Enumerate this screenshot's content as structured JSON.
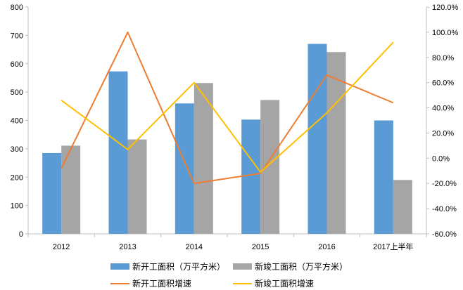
{
  "chart_data": {
    "type": "bar",
    "categories": [
      "2012",
      "2013",
      "2014",
      "2015",
      "2016",
      "2017上半年"
    ],
    "y_left": {
      "ylim": [
        0,
        800
      ],
      "ticks": [
        "0",
        "100",
        "200",
        "300",
        "400",
        "500",
        "600",
        "700",
        "800"
      ]
    },
    "y_right": {
      "ylim": [
        -60,
        120
      ],
      "ticks": [
        "-60.0%",
        "-40.0%",
        "-20.0%",
        "0.0%",
        "20.0%",
        "40.0%",
        "60.0%",
        "80.0%",
        "100.0%",
        "120.0%"
      ]
    },
    "series": [
      {
        "name": "新开工面积（万平方米）",
        "type": "bar",
        "axis": "left",
        "color": "#5b9bd5",
        "values": [
          285,
          573,
          460,
          403,
          670,
          400
        ]
      },
      {
        "name": "新竣工面积（万平方米）",
        "type": "bar",
        "axis": "left",
        "color": "#a5a5a5",
        "values": [
          311,
          333,
          532,
          472,
          641,
          190
        ]
      },
      {
        "name": "新开工面积增速",
        "type": "line",
        "axis": "right",
        "color": "#ed7d31",
        "values": [
          -8,
          100,
          -20,
          -12,
          66,
          44
        ]
      },
      {
        "name": "新竣工面积增速",
        "type": "line",
        "axis": "right",
        "color": "#ffc000",
        "values": [
          46,
          7,
          60,
          -11,
          36,
          92
        ]
      }
    ],
    "grid": false,
    "legend": "bottom"
  }
}
